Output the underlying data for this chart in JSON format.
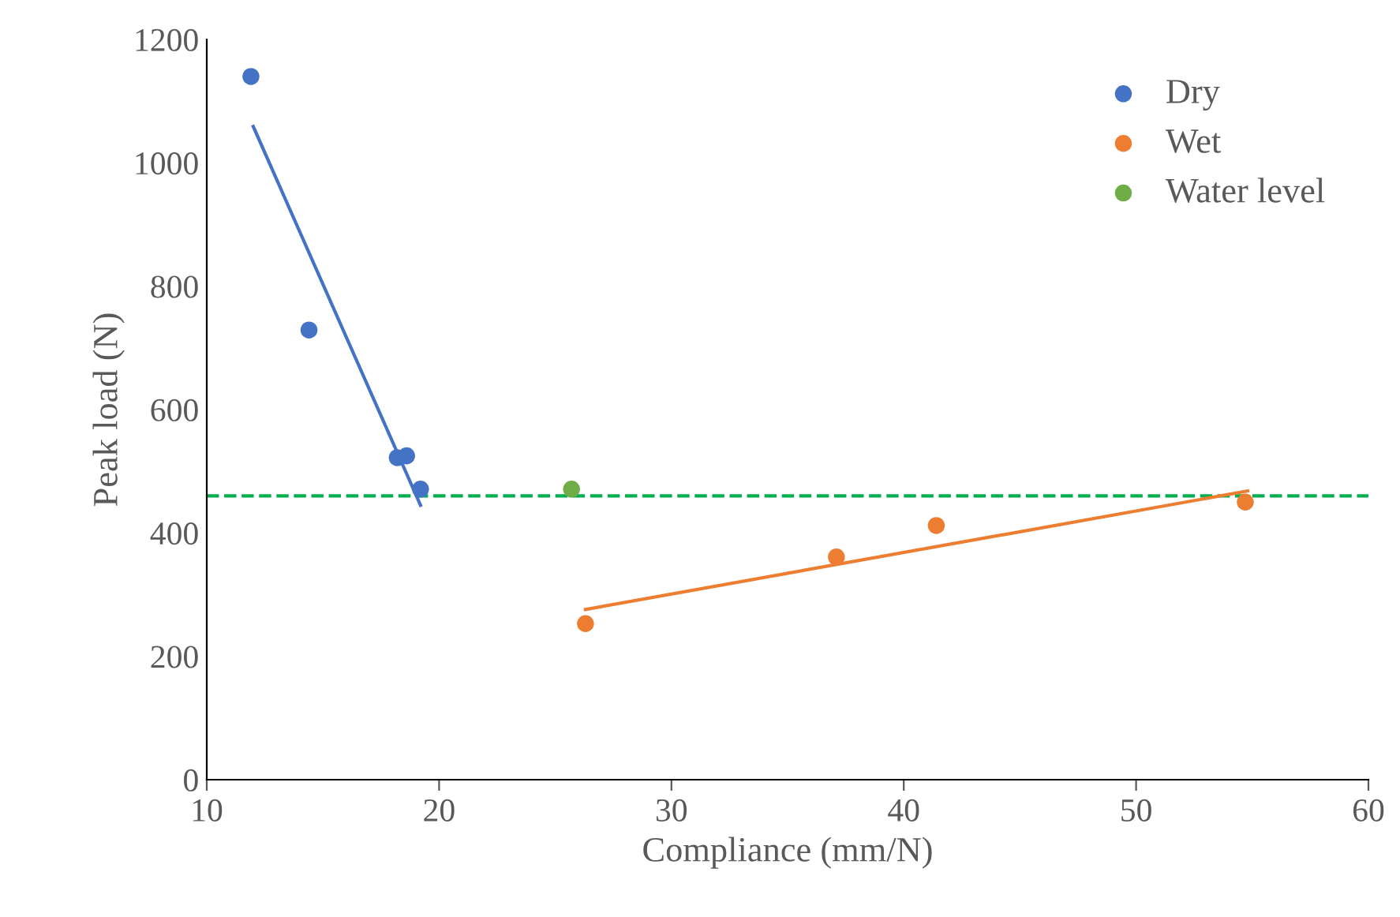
{
  "chart_data": {
    "type": "scatter",
    "xlabel": "Compliance (mm/N)",
    "ylabel": "Peak load (N)",
    "xlim": [
      10,
      60
    ],
    "xticks": [
      10,
      20,
      30,
      40,
      50,
      60
    ],
    "ylim": [
      0,
      1200
    ],
    "yticks": [
      0,
      200,
      400,
      600,
      800,
      1000,
      1200
    ],
    "grid": false,
    "legend": "top right",
    "marker": "circle",
    "series": [
      {
        "name": "Dry",
        "color": "#4472c4",
        "x": [
          11.9,
          14.4,
          18.2,
          18.6,
          19.2
        ],
        "values": [
          1140,
          729,
          522,
          525,
          471
        ]
      },
      {
        "name": "Wet",
        "color": "#ed7d31",
        "x": [
          26.3,
          37.1,
          41.4,
          54.7
        ],
        "values": [
          253,
          361,
          412,
          450
        ]
      },
      {
        "name": "Water level",
        "color": "#70ad47",
        "x": [
          25.7
        ],
        "values": [
          471
        ]
      },
      {
        "type": "line",
        "marker": "none",
        "color": "#4472c4",
        "x": [
          12.0,
          19.2
        ],
        "values": [
          1059,
          445
        ]
      },
      {
        "type": "line",
        "marker": "none",
        "color": "#ed7d31",
        "x": [
          26.3,
          54.8
        ],
        "values": [
          276,
          468
        ]
      }
    ],
    "ref_lines": [
      {
        "axis": "y",
        "value": 460,
        "color": "#00b050",
        "line_style": "dashed"
      }
    ]
  }
}
